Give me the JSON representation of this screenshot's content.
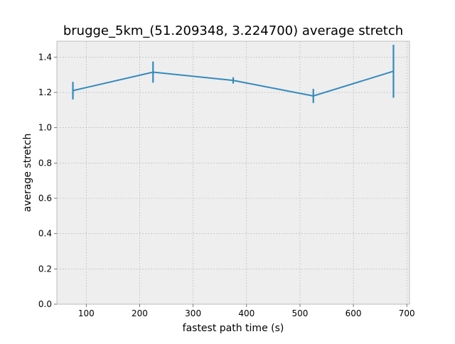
{
  "chart_data": {
    "type": "line",
    "title": "brugge_5km_(51.209348, 3.224700) average stretch",
    "xlabel": "fastest path time (s)",
    "ylabel": "average stretch",
    "xlim": [
      45,
      705
    ],
    "ylim": [
      0.0,
      1.49
    ],
    "xticks": [
      100,
      200,
      300,
      400,
      500,
      600,
      700
    ],
    "xtick_labels": [
      "100",
      "200",
      "300",
      "400",
      "500",
      "600",
      "700"
    ],
    "yticks": [
      0.0,
      0.2,
      0.4,
      0.6,
      0.8,
      1.0,
      1.2,
      1.4
    ],
    "ytick_labels": [
      "0.0",
      "0.2",
      "0.4",
      "0.6",
      "0.8",
      "1.0",
      "1.2",
      "1.4"
    ],
    "grid": true,
    "series": [
      {
        "x": [
          75,
          225,
          375,
          525,
          675
        ],
        "y": [
          1.21,
          1.315,
          1.268,
          1.18,
          1.32
        ],
        "error": [
          0.05,
          0.06,
          0.018,
          0.04,
          0.15
        ],
        "color": "#348ABD"
      }
    ],
    "colors": {
      "plot_background": "#EEEEEE",
      "grid": "#B2B2B2",
      "axes_edge": "#BCBCBC"
    }
  }
}
